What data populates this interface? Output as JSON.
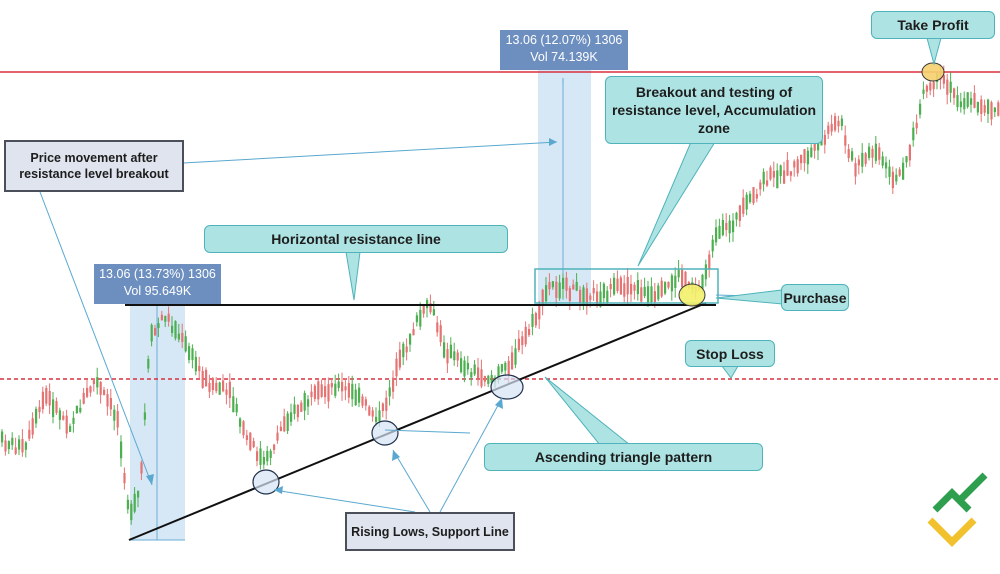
{
  "chart_data": {
    "type": "candlestick",
    "title": "",
    "annotations": {
      "take_profit": "Take Profit",
      "breakout_zone": "Breakout and testing of resistance level, Accumulation zone",
      "price_movement": "Price movement after resistance level breakout",
      "horizontal_resistance": "Horizontal resistance line",
      "purchase": "Purchase",
      "stop_loss": "Stop Loss",
      "ascending_triangle": "Ascending triangle pattern",
      "rising_lows": "Rising Lows, Support Line"
    },
    "measurements": [
      {
        "line1": "13.06 (13.73%) 1306",
        "line2": "Vol 95.649K"
      },
      {
        "line1": "13.06 (12.07%) 1306",
        "line2": "Vol 74.139K"
      }
    ],
    "colors": {
      "bull": "#4caf50",
      "bear": "#e57373",
      "resistance_red": "#d9303e",
      "support_line": "#111111",
      "callout_fill": "#aee3e3",
      "info_fill": "#6d8fbf"
    }
  }
}
